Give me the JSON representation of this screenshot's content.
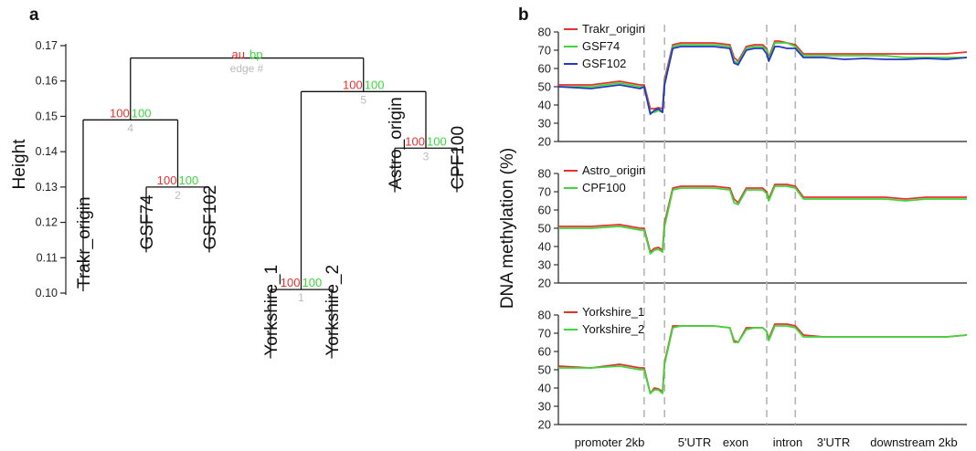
{
  "panel_a": {
    "letter": "a",
    "chart_data": {
      "type": "dendrogram",
      "ylabel": "Height",
      "ylim": [
        0.1,
        0.17
      ],
      "yticks": [
        "0.10",
        "0.11",
        "0.12",
        "0.13",
        "0.14",
        "0.15",
        "0.16",
        "0.17"
      ],
      "legend": {
        "au_label": "au",
        "bp_label": "bp",
        "edge_label": "edge #"
      },
      "leaves": [
        "Trakr_origin",
        "GSF74",
        "GSF102",
        "Yorkshire_1",
        "Yorkshire_2",
        "Astro_origin",
        "CPF100"
      ],
      "nodes": [
        {
          "id": "1",
          "height": 0.101,
          "au": "100",
          "bp": "100",
          "children": [
            "Yorkshire_1",
            "Yorkshire_2"
          ]
        },
        {
          "id": "2",
          "height": 0.13,
          "au": "100",
          "bp": "100",
          "children": [
            "GSF74",
            "GSF102"
          ]
        },
        {
          "id": "3",
          "height": 0.141,
          "au": "100",
          "bp": "100",
          "children": [
            "Astro_origin",
            "CPF100"
          ]
        },
        {
          "id": "4",
          "height": 0.149,
          "au": "100",
          "bp": "100",
          "children": [
            "Trakr_origin",
            "2"
          ]
        },
        {
          "id": "5",
          "height": 0.157,
          "au": "100",
          "bp": "100",
          "children": [
            "1",
            "3"
          ]
        },
        {
          "id": "root",
          "height": 0.1665,
          "children": [
            "4",
            "5"
          ]
        }
      ],
      "leaf_heights": {
        "Trakr_origin": 0.1005,
        "GSF74": 0.1115,
        "GSF102": 0.1115,
        "Yorkshire_1": 0.0815,
        "Yorkshire_2": 0.0815,
        "Astro_origin": 0.1285,
        "CPF100": 0.1285
      }
    }
  },
  "panel_b": {
    "letter": "b",
    "ylabel": "DNA methylation (%)",
    "regions": [
      "promoter 2kb",
      "5'UTR",
      "exon",
      "intron",
      "3'UTR",
      "downstream 2kb"
    ],
    "chart_data": [
      {
        "type": "line",
        "ylim": [
          20,
          80
        ],
        "yticks": [
          "20",
          "30",
          "40",
          "50",
          "60",
          "70",
          "80"
        ],
        "region_boundaries": [
          0.21,
          0.26,
          0.51,
          0.58
        ],
        "x": [
          0,
          0.08,
          0.15,
          0.2,
          0.21,
          0.225,
          0.235,
          0.245,
          0.255,
          0.26,
          0.28,
          0.3,
          0.33,
          0.38,
          0.42,
          0.43,
          0.44,
          0.46,
          0.48,
          0.5,
          0.51,
          0.515,
          0.53,
          0.54,
          0.56,
          0.58,
          0.6,
          0.65,
          0.7,
          0.75,
          0.8,
          0.85,
          0.9,
          0.95,
          1
        ],
        "series": [
          {
            "name": "Trakr_origin",
            "color": "#e8312f",
            "values": [
              51,
              51,
              53,
              51,
              51,
              38,
              38,
              38.5,
              38,
              54,
              73,
              74,
              74,
              74,
              73,
              66,
              64,
              72,
              73,
              73,
              71,
              66,
              75,
              75,
              74,
              73,
              68,
              68,
              68,
              68,
              68,
              68,
              68,
              68,
              69
            ]
          },
          {
            "name": "GSF74",
            "color": "#3bd83b",
            "values": [
              50,
              50,
              52,
              50,
              50,
              36,
              36,
              37,
              36,
              52,
              72,
              73,
              73,
              73,
              72,
              64,
              63,
              71,
              72,
              72,
              70,
              65,
              74,
              74,
              74,
              72,
              67,
              67,
              67,
              67,
              67,
              66,
              66,
              66,
              66
            ]
          },
          {
            "name": "GSF102",
            "color": "#2536c8",
            "values": [
              50,
              49,
              51,
              49,
              50,
              35,
              37,
              38,
              36,
              51,
              71,
              72,
              72,
              72,
              71,
              63,
              62,
              70,
              71,
              71,
              68,
              64,
              72,
              72,
              71,
              71,
              66,
              66,
              65,
              65.5,
              65,
              65,
              65.5,
              65,
              66
            ]
          }
        ]
      },
      {
        "type": "line",
        "ylim": [
          20,
          80
        ],
        "yticks": [
          "20",
          "30",
          "40",
          "50",
          "60",
          "70",
          "80"
        ],
        "region_boundaries": [
          0.21,
          0.26,
          0.51,
          0.58
        ],
        "x": [
          0,
          0.08,
          0.15,
          0.2,
          0.21,
          0.225,
          0.235,
          0.245,
          0.255,
          0.26,
          0.28,
          0.3,
          0.33,
          0.38,
          0.42,
          0.43,
          0.44,
          0.46,
          0.48,
          0.5,
          0.51,
          0.515,
          0.53,
          0.54,
          0.56,
          0.58,
          0.6,
          0.65,
          0.7,
          0.75,
          0.8,
          0.85,
          0.9,
          0.95,
          1
        ],
        "series": [
          {
            "name": "Astro_origin",
            "color": "#e8312f",
            "values": [
              51,
              51,
              52,
              50,
              50,
              37,
              39,
              39.5,
              38,
              53,
              72,
              73,
              73,
              73,
              72,
              66,
              64,
              72,
              72,
              72,
              70,
              66,
              74,
              74,
              74,
              73,
              67,
              67,
              67,
              67,
              67,
              66,
              67,
              67,
              67
            ]
          },
          {
            "name": "CPF100",
            "color": "#3bd83b",
            "values": [
              50,
              50,
              51,
              49,
              49,
              36,
              38,
              38.5,
              37,
              51,
              71,
              72,
              72,
              72,
              71,
              64,
              63,
              71,
              71,
              71,
              69,
              65,
              73,
              73,
              73,
              72,
              66,
              66,
              66,
              66,
              66,
              65,
              66,
              66,
              66
            ]
          }
        ]
      },
      {
        "type": "line",
        "ylim": [
          20,
          80
        ],
        "yticks": [
          "20",
          "30",
          "40",
          "50",
          "60",
          "70",
          "80"
        ],
        "region_boundaries": [
          0.21,
          0.26,
          0.51,
          0.58
        ],
        "x": [
          0,
          0.08,
          0.15,
          0.2,
          0.21,
          0.225,
          0.235,
          0.245,
          0.255,
          0.26,
          0.28,
          0.3,
          0.33,
          0.38,
          0.42,
          0.43,
          0.44,
          0.46,
          0.48,
          0.5,
          0.51,
          0.515,
          0.53,
          0.54,
          0.56,
          0.58,
          0.6,
          0.65,
          0.7,
          0.75,
          0.8,
          0.85,
          0.9,
          0.95,
          1
        ],
        "series": [
          {
            "name": "Yorkshire_1",
            "color": "#e8312f",
            "values": [
              52,
              51,
              53,
              51,
              51,
              37,
              40,
              39.5,
              38,
              54,
              74,
              74,
              74,
              74,
              73,
              66,
              65,
              73,
              73,
              73,
              71,
              67,
              75,
              75,
              75,
              74,
              69,
              68,
              68,
              68,
              68,
              68,
              68,
              68,
              69
            ]
          },
          {
            "name": "Yorkshire_2",
            "color": "#3bd83b",
            "values": [
              51,
              51,
              52,
              50,
              50,
              37,
              39,
              39,
              37,
              53,
              73,
              74,
              74,
              74,
              73,
              65,
              65,
              72,
              73,
              73,
              71,
              66,
              74,
              74,
              74,
              73,
              68,
              68,
              68,
              68,
              68,
              68,
              68,
              68,
              69
            ]
          }
        ]
      }
    ]
  }
}
